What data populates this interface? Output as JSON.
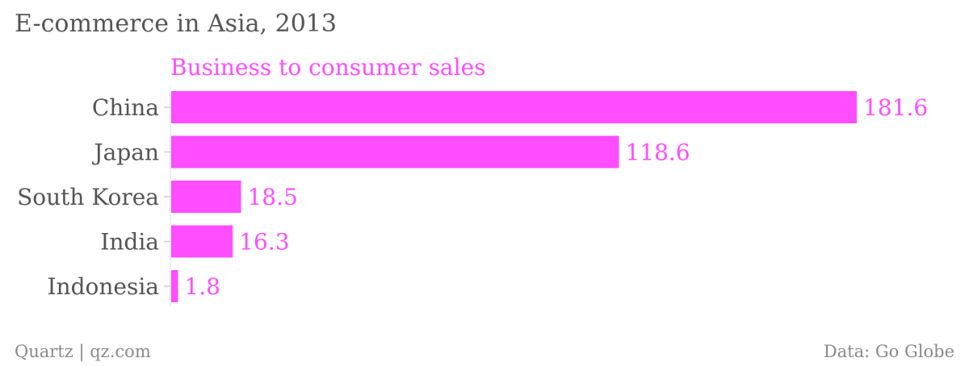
{
  "chart_data": {
    "type": "bar",
    "orientation": "horizontal",
    "title": "E-commerce in Asia, 2013",
    "series_name": "Business to consumer sales",
    "categories": [
      "China",
      "Japan",
      "South Korea",
      "India",
      "Indonesia"
    ],
    "values": [
      181.6,
      118.6,
      18.5,
      16.3,
      1.8
    ],
    "value_labels": [
      "181.6",
      "118.6",
      "18.5",
      "16.3",
      "1.8"
    ],
    "xlim": [
      0,
      181.6
    ],
    "grid": false,
    "bar_color": "#ff4dff"
  },
  "footer": {
    "source_left": "Quartz | qz.com",
    "source_right": "Data: Go Globe"
  }
}
